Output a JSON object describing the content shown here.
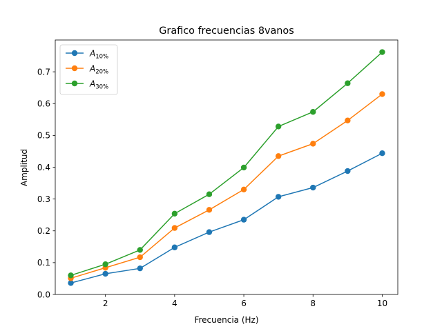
{
  "chart_data": {
    "type": "line",
    "title": "Grafico frecuencias 8vanos",
    "xlabel": "Frecuencia (Hz)",
    "ylabel": "Amplitud",
    "x": [
      1,
      2,
      3,
      4,
      5,
      6,
      7,
      8,
      9,
      10
    ],
    "xlim": [
      0.55,
      10.45
    ],
    "ylim": [
      0,
      0.8
    ],
    "xticks": [
      "2",
      "4",
      "6",
      "8",
      "10"
    ],
    "yticks": [
      "0.0",
      "0.1",
      "0.2",
      "0.3",
      "0.4",
      "0.5",
      "0.6",
      "0.7"
    ],
    "grid": false,
    "legend_position": "upper-left",
    "series": [
      {
        "name": "A",
        "subscript": "10%",
        "color": "#1f77b4",
        "marker": "circle",
        "values": [
          0.036,
          0.065,
          0.082,
          0.148,
          0.196,
          0.235,
          0.307,
          0.336,
          0.388,
          0.444
        ]
      },
      {
        "name": "A",
        "subscript": "20%",
        "color": "#ff7f0e",
        "marker": "circle",
        "values": [
          0.051,
          0.084,
          0.117,
          0.209,
          0.266,
          0.33,
          0.435,
          0.474,
          0.547,
          0.63
        ]
      },
      {
        "name": "A",
        "subscript": "30%",
        "color": "#2ca02c",
        "marker": "circle",
        "values": [
          0.06,
          0.095,
          0.14,
          0.254,
          0.315,
          0.399,
          0.528,
          0.574,
          0.664,
          0.762
        ]
      }
    ]
  }
}
